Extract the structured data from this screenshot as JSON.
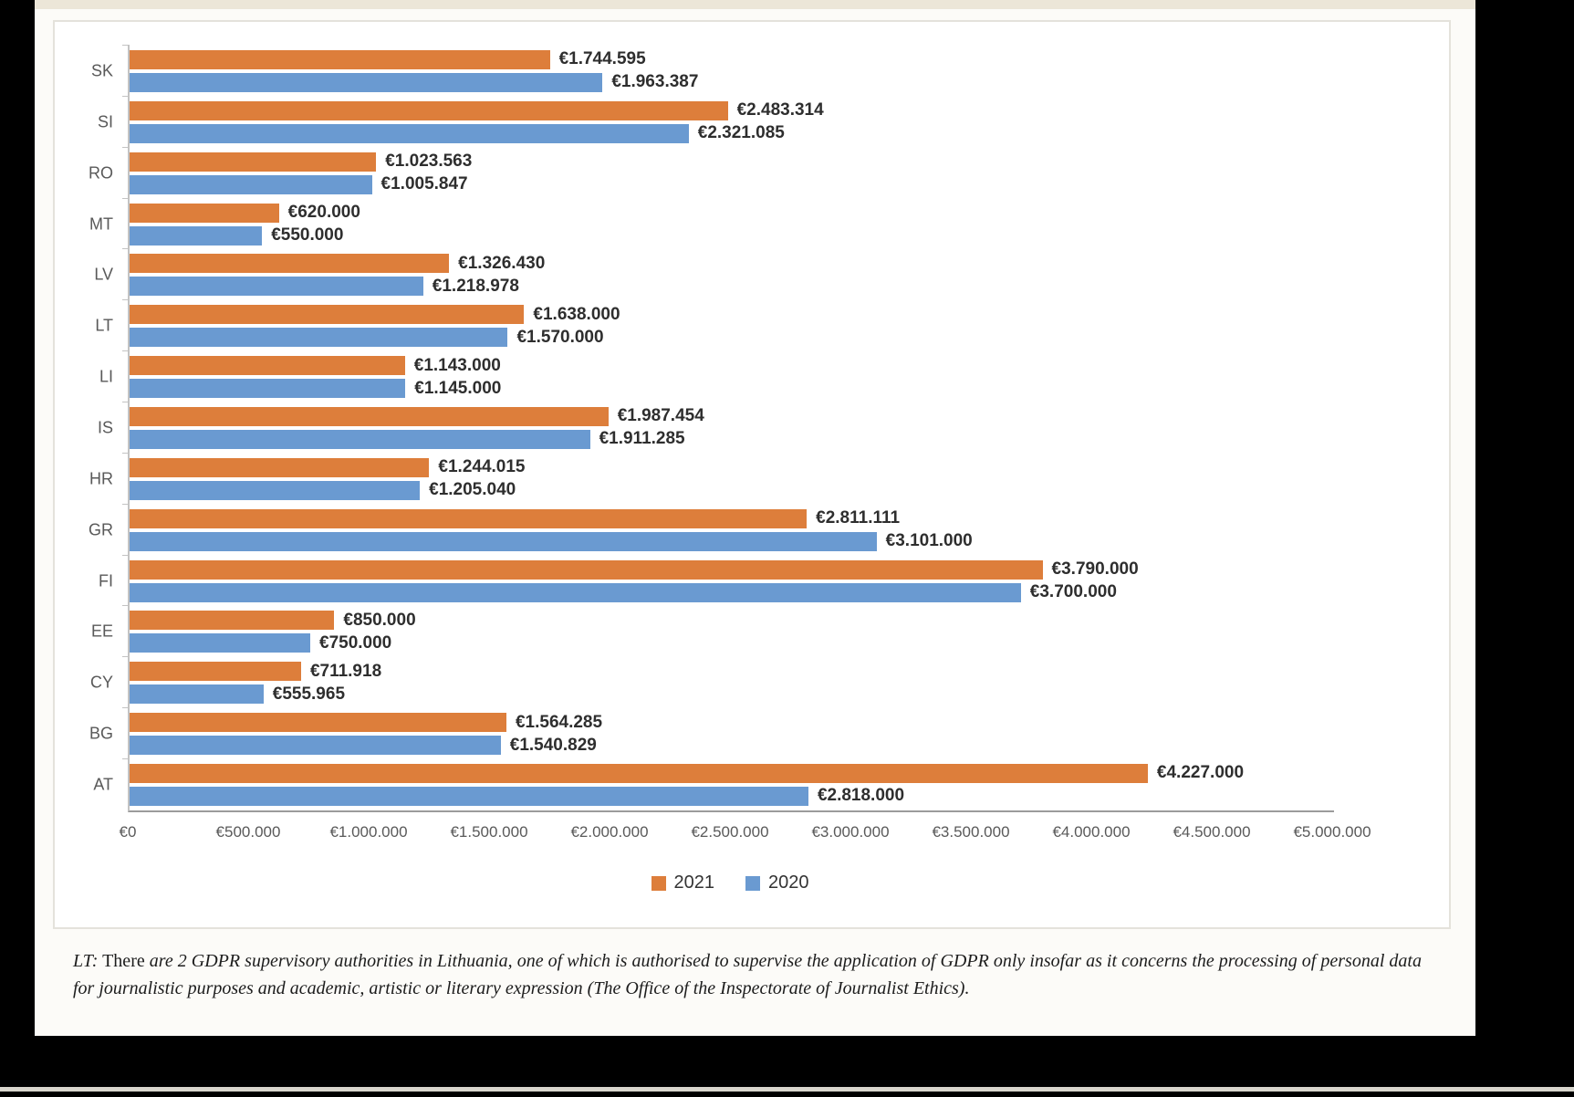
{
  "chart_data": {
    "type": "bar",
    "orientation": "horizontal",
    "title": "",
    "xlabel": "",
    "ylabel": "",
    "grid": false,
    "legend_position": "bottom",
    "categories": [
      "SK",
      "SI",
      "RO",
      "MT",
      "LV",
      "LT",
      "LI",
      "IS",
      "HR",
      "GR",
      "FI",
      "EE",
      "CY",
      "BG",
      "AT"
    ],
    "xlim": [
      0,
      5000000
    ],
    "x_ticks": [
      "€0",
      "€500.000",
      "€1.000.000",
      "€1.500.000",
      "€2.000.000",
      "€2.500.000",
      "€3.000.000",
      "€3.500.000",
      "€4.000.000",
      "€4.500.000",
      "€5.000.000"
    ],
    "series": [
      {
        "name": "2021",
        "color": "#dd7e3b",
        "values": [
          1744595,
          2483314,
          1023563,
          620000,
          1326430,
          1638000,
          1143000,
          1987454,
          1244015,
          2811111,
          3790000,
          850000,
          711918,
          1564285,
          4227000
        ],
        "value_labels": [
          "€1.744.595",
          "€2.483.314",
          "€1.023.563",
          "€620.000",
          "€1.326.430",
          "€1.638.000",
          "€1.143.000",
          "€1.987.454",
          "€1.244.015",
          "€2.811.111",
          "€3.790.000",
          "€850.000",
          "€711.918",
          "€1.564.285",
          "€4.227.000"
        ]
      },
      {
        "name": "2020",
        "color": "#6a9ad1",
        "values": [
          1963387,
          2321085,
          1005847,
          550000,
          1218978,
          1570000,
          1145000,
          1911285,
          1205040,
          3101000,
          3700000,
          750000,
          555965,
          1540829,
          2818000
        ],
        "value_labels": [
          "€1.963.387",
          "€2.321.085",
          "€1.005.847",
          "€550.000",
          "€1.218.978",
          "€1.570.000",
          "€1.145.000",
          "€1.911.285",
          "€1.205.040",
          "€3.101.000",
          "€3.700.000",
          "€750.000",
          "€555.965",
          "€1.540.829",
          "€2.818.000"
        ]
      }
    ],
    "legend": [
      {
        "label": "2021",
        "color": "#dd7e3b"
      },
      {
        "label": "2020",
        "color": "#6a9ad1"
      }
    ]
  },
  "footnote": {
    "prefix": "LT:",
    "roman": " There ",
    "body": "are 2 GDPR supervisory authorities in Lithuania, one of which is authorised to supervise the application of GDPR only insofar as it concerns the processing of personal data for journalistic purposes and academic, artistic or literary expression (The Office of the Inspectorate of Journalist Ethics)."
  }
}
